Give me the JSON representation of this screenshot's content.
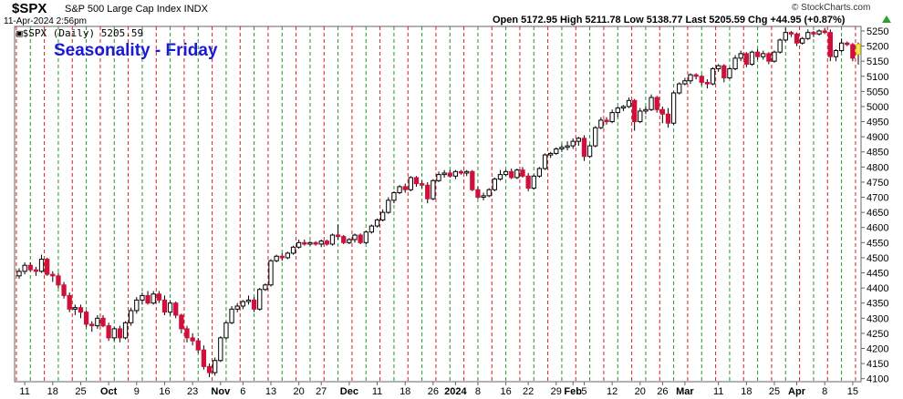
{
  "header": {
    "symbol": "$SPX",
    "description": "S&P 500 Large Cap Index INDX",
    "date": "11-Apr-2024 2:56pm",
    "ohlc": "Open 5172.95  High 5211.78  Low 5138.77  Last 5205.59  Chg +44.95 (+0.87%)",
    "credit": "© StockCharts.com",
    "legend": "▣$SPX (Daily) 5205.59"
  },
  "chart_data": {
    "type": "candlestick",
    "title": "Seasonality - Friday",
    "ylim": [
      4090,
      5265
    ],
    "y_ticks": [
      4100,
      4150,
      4200,
      4250,
      4300,
      4350,
      4400,
      4450,
      4500,
      4550,
      4600,
      4650,
      4700,
      4750,
      4800,
      4850,
      4900,
      4950,
      5000,
      5050,
      5100,
      5150,
      5200,
      5250
    ],
    "x_labels": [
      {
        "text": "11",
        "i": 1
      },
      {
        "text": "18",
        "i": 6
      },
      {
        "text": "25",
        "i": 11
      },
      {
        "text": "Oct",
        "i": 16,
        "bold": true
      },
      {
        "text": "9",
        "i": 21
      },
      {
        "text": "16",
        "i": 26
      },
      {
        "text": "23",
        "i": 31
      },
      {
        "text": "Nov",
        "i": 36,
        "bold": true
      },
      {
        "text": "6",
        "i": 40
      },
      {
        "text": "13",
        "i": 45
      },
      {
        "text": "20",
        "i": 50
      },
      {
        "text": "27",
        "i": 54
      },
      {
        "text": "Dec",
        "i": 59,
        "bold": true
      },
      {
        "text": "11",
        "i": 64
      },
      {
        "text": "18",
        "i": 69
      },
      {
        "text": "26",
        "i": 74
      },
      {
        "text": "2024",
        "i": 78,
        "bold": true
      },
      {
        "text": "8",
        "i": 82
      },
      {
        "text": "16",
        "i": 87
      },
      {
        "text": "22",
        "i": 91
      },
      {
        "text": "29",
        "i": 96
      },
      {
        "text": "Feb",
        "i": 99,
        "bold": true
      },
      {
        "text": "5",
        "i": 101
      },
      {
        "text": "12",
        "i": 106
      },
      {
        "text": "20",
        "i": 111
      },
      {
        "text": "26",
        "i": 115
      },
      {
        "text": "Mar",
        "i": 119,
        "bold": true
      },
      {
        "text": "11",
        "i": 125
      },
      {
        "text": "18",
        "i": 130
      },
      {
        "text": "25",
        "i": 135
      },
      {
        "text": "Apr",
        "i": 139,
        "bold": true
      },
      {
        "text": "8",
        "i": 144
      },
      {
        "text": "15",
        "i": 149
      }
    ],
    "candles": [
      [
        4440,
        4465,
        4430,
        4455
      ],
      [
        4455,
        4485,
        4445,
        4475
      ],
      [
        4475,
        4485,
        4455,
        4460
      ],
      [
        4460,
        4470,
        4440,
        4455
      ],
      [
        4455,
        4510,
        4450,
        4495
      ],
      [
        4495,
        4500,
        4440,
        4445
      ],
      [
        4445,
        4455,
        4420,
        4440
      ],
      [
        4440,
        4450,
        4400,
        4410
      ],
      [
        4410,
        4420,
        4365,
        4375
      ],
      [
        4375,
        4385,
        4320,
        4330
      ],
      [
        4330,
        4345,
        4310,
        4335
      ],
      [
        4335,
        4345,
        4300,
        4320
      ],
      [
        4320,
        4325,
        4270,
        4280
      ],
      [
        4280,
        4290,
        4255,
        4275
      ],
      [
        4275,
        4310,
        4265,
        4300
      ],
      [
        4300,
        4310,
        4270,
        4275
      ],
      [
        4275,
        4285,
        4225,
        4235
      ],
      [
        4235,
        4270,
        4225,
        4265
      ],
      [
        4265,
        4275,
        4220,
        4235
      ],
      [
        4235,
        4290,
        4230,
        4285
      ],
      [
        4285,
        4335,
        4275,
        4325
      ],
      [
        4325,
        4370,
        4315,
        4360
      ],
      [
        4360,
        4385,
        4345,
        4375
      ],
      [
        4375,
        4390,
        4345,
        4350
      ],
      [
        4350,
        4390,
        4345,
        4380
      ],
      [
        4380,
        4390,
        4350,
        4360
      ],
      [
        4360,
        4375,
        4310,
        4320
      ],
      [
        4320,
        4360,
        4310,
        4350
      ],
      [
        4350,
        4355,
        4300,
        4310
      ],
      [
        4310,
        4315,
        4250,
        4265
      ],
      [
        4265,
        4275,
        4220,
        4235
      ],
      [
        4235,
        4250,
        4210,
        4225
      ],
      [
        4225,
        4235,
        4185,
        4195
      ],
      [
        4195,
        4210,
        4130,
        4140
      ],
      [
        4140,
        4150,
        4105,
        4120
      ],
      [
        4120,
        4170,
        4110,
        4160
      ],
      [
        4160,
        4240,
        4155,
        4235
      ],
      [
        4235,
        4290,
        4230,
        4285
      ],
      [
        4285,
        4340,
        4280,
        4330
      ],
      [
        4330,
        4350,
        4320,
        4340
      ],
      [
        4340,
        4360,
        4330,
        4355
      ],
      [
        4355,
        4375,
        4345,
        4360
      ],
      [
        4360,
        4370,
        4320,
        4330
      ],
      [
        4330,
        4400,
        4325,
        4395
      ],
      [
        4395,
        4415,
        4390,
        4410
      ],
      [
        4410,
        4495,
        4405,
        4490
      ],
      [
        4490,
        4510,
        4485,
        4505
      ],
      [
        4505,
        4515,
        4490,
        4500
      ],
      [
        4500,
        4520,
        4495,
        4515
      ],
      [
        4515,
        4540,
        4510,
        4535
      ],
      [
        4535,
        4560,
        4530,
        4550
      ],
      [
        4550,
        4560,
        4540,
        4545
      ],
      [
        4545,
        4555,
        4540,
        4550
      ],
      [
        4550,
        4555,
        4540,
        4545
      ],
      [
        4545,
        4560,
        4535,
        4555
      ],
      [
        4555,
        4560,
        4540,
        4545
      ],
      [
        4545,
        4580,
        4540,
        4575
      ],
      [
        4575,
        4610,
        4560,
        4570
      ],
      [
        4570,
        4575,
        4545,
        4550
      ],
      [
        4550,
        4565,
        4545,
        4560
      ],
      [
        4560,
        4580,
        4550,
        4575
      ],
      [
        4575,
        4580,
        4545,
        4550
      ],
      [
        4550,
        4590,
        4545,
        4585
      ],
      [
        4585,
        4610,
        4580,
        4605
      ],
      [
        4605,
        4630,
        4600,
        4625
      ],
      [
        4625,
        4660,
        4620,
        4650
      ],
      [
        4650,
        4700,
        4645,
        4690
      ],
      [
        4690,
        4720,
        4680,
        4715
      ],
      [
        4715,
        4740,
        4710,
        4735
      ],
      [
        4735,
        4745,
        4715,
        4725
      ],
      [
        4725,
        4770,
        4720,
        4765
      ],
      [
        4765,
        4770,
        4735,
        4745
      ],
      [
        4745,
        4755,
        4730,
        4740
      ],
      [
        4740,
        4750,
        4680,
        4695
      ],
      [
        4695,
        4760,
        4690,
        4755
      ],
      [
        4755,
        4785,
        4750,
        4775
      ],
      [
        4775,
        4790,
        4765,
        4780
      ],
      [
        4780,
        4790,
        4765,
        4770
      ],
      [
        4770,
        4790,
        4760,
        4785
      ],
      [
        4785,
        4790,
        4775,
        4780
      ],
      [
        4780,
        4790,
        4770,
        4785
      ],
      [
        4785,
        4790,
        4720,
        4725
      ],
      [
        4725,
        4735,
        4695,
        4700
      ],
      [
        4700,
        4715,
        4690,
        4705
      ],
      [
        4705,
        4730,
        4700,
        4725
      ],
      [
        4725,
        4765,
        4720,
        4760
      ],
      [
        4760,
        4790,
        4755,
        4775
      ],
      [
        4775,
        4790,
        4770,
        4785
      ],
      [
        4785,
        4795,
        4760,
        4765
      ],
      [
        4765,
        4795,
        4760,
        4790
      ],
      [
        4790,
        4800,
        4765,
        4770
      ],
      [
        4770,
        4780,
        4720,
        4730
      ],
      [
        4730,
        4775,
        4725,
        4770
      ],
      [
        4770,
        4800,
        4765,
        4795
      ],
      [
        4795,
        4845,
        4790,
        4840
      ],
      [
        4840,
        4850,
        4830,
        4845
      ],
      [
        4845,
        4865,
        4840,
        4860
      ],
      [
        4860,
        4875,
        4850,
        4865
      ],
      [
        4865,
        4885,
        4855,
        4870
      ],
      [
        4870,
        4895,
        4860,
        4885
      ],
      [
        4885,
        4900,
        4870,
        4895
      ],
      [
        4895,
        4905,
        4820,
        4835
      ],
      [
        4835,
        4875,
        4830,
        4870
      ],
      [
        4870,
        4935,
        4865,
        4930
      ],
      [
        4930,
        4965,
        4925,
        4955
      ],
      [
        4955,
        4965,
        4940,
        4950
      ],
      [
        4950,
        4990,
        4945,
        4980
      ],
      [
        4980,
        5000,
        4965,
        4995
      ],
      [
        4995,
        5005,
        4985,
        5000
      ],
      [
        5000,
        5030,
        4995,
        5020
      ],
      [
        5020,
        5025,
        4920,
        4950
      ],
      [
        4950,
        4995,
        4945,
        4985
      ],
      [
        4985,
        5000,
        4975,
        4990
      ],
      [
        4990,
        5040,
        4985,
        5030
      ],
      [
        5030,
        5035,
        4980,
        4990
      ],
      [
        4990,
        5000,
        4945,
        4975
      ],
      [
        4975,
        4995,
        4930,
        4945
      ],
      [
        4945,
        5050,
        4940,
        5045
      ],
      [
        5045,
        5080,
        5040,
        5075
      ],
      [
        5075,
        5095,
        5070,
        5085
      ],
      [
        5085,
        5110,
        5075,
        5105
      ],
      [
        5105,
        5110,
        5090,
        5100
      ],
      [
        5100,
        5105,
        5070,
        5080
      ],
      [
        5080,
        5090,
        5060,
        5075
      ],
      [
        5075,
        5130,
        5070,
        5125
      ],
      [
        5125,
        5140,
        5115,
        5135
      ],
      [
        5135,
        5140,
        5080,
        5095
      ],
      [
        5095,
        5130,
        5090,
        5125
      ],
      [
        5125,
        5170,
        5120,
        5160
      ],
      [
        5160,
        5185,
        5150,
        5175
      ],
      [
        5175,
        5180,
        5130,
        5140
      ],
      [
        5140,
        5185,
        5135,
        5180
      ],
      [
        5180,
        5190,
        5155,
        5165
      ],
      [
        5165,
        5185,
        5155,
        5175
      ],
      [
        5175,
        5180,
        5140,
        5150
      ],
      [
        5150,
        5185,
        5145,
        5180
      ],
      [
        5180,
        5225,
        5175,
        5220
      ],
      [
        5220,
        5260,
        5215,
        5245
      ],
      [
        5245,
        5250,
        5230,
        5240
      ],
      [
        5240,
        5245,
        5200,
        5210
      ],
      [
        5210,
        5230,
        5205,
        5225
      ],
      [
        5225,
        5255,
        5220,
        5245
      ],
      [
        5245,
        5250,
        5230,
        5240
      ],
      [
        5240,
        5255,
        5235,
        5250
      ],
      [
        5250,
        5260,
        5240,
        5245
      ],
      [
        5245,
        5255,
        5150,
        5165
      ],
      [
        5165,
        5190,
        5150,
        5185
      ],
      [
        5185,
        5225,
        5180,
        5210
      ],
      [
        5210,
        5215,
        5200,
        5205
      ],
      [
        5205,
        5210,
        5150,
        5160
      ],
      [
        5173,
        5212,
        5139,
        5206
      ]
    ]
  }
}
